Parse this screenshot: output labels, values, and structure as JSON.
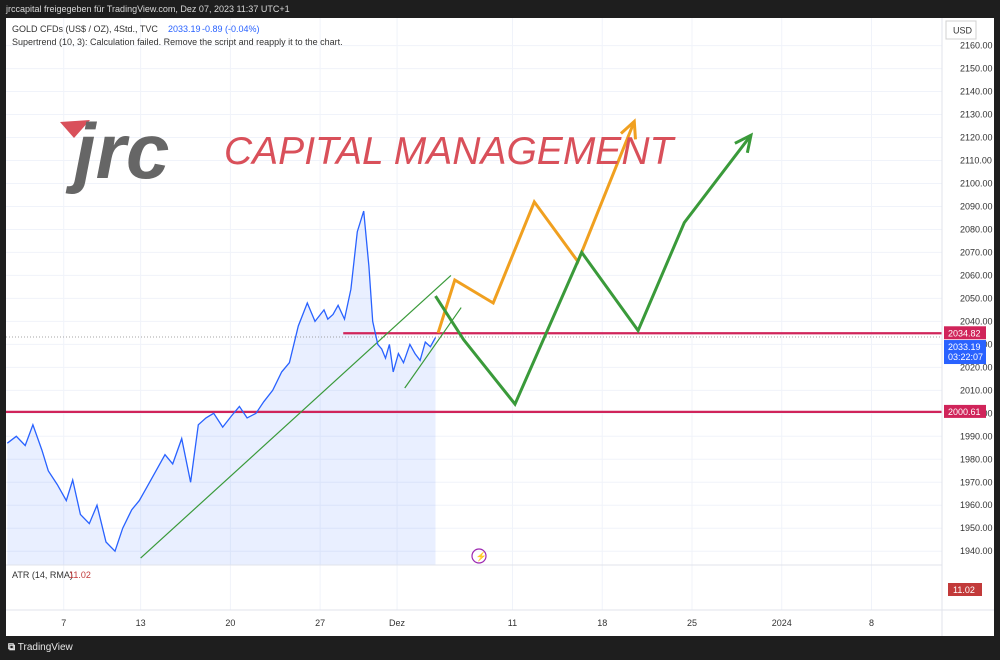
{
  "header": {
    "publisher": "jrccapital freigegeben für TradingView.com, Dez 07, 2023 11:37 UTC+1"
  },
  "legend": {
    "symbol": "GOLD CFDs (US$ / OZ), 4Std., TVC",
    "last": "2033.19",
    "change": "-0.89 (-0.04%)",
    "indicator": "Supertrend (10, 3): Calculation failed. Remove the script and reapply it to the chart.",
    "atr_label": "ATR (14, RMA)",
    "atr_value": "11.02"
  },
  "logo": {
    "mark": "jrc",
    "text": "CAPITAL MANAGEMENT"
  },
  "footer": {
    "brand": "TradingView"
  },
  "colors": {
    "price_line": "#2962ff",
    "trend_green": "#3a9a3a",
    "orange": "#f0a020",
    "resistance": "#d0245a",
    "logo_gray": "#666666",
    "logo_red": "#d9505a"
  },
  "chart_data": {
    "type": "line",
    "currency": "USD",
    "y_ticks": [
      1940,
      1950,
      1960,
      1970,
      1980,
      1990,
      2000,
      2010,
      2020,
      2030,
      2040,
      2050,
      2060,
      2070,
      2080,
      2090,
      2100,
      2110,
      2120,
      2130,
      2140,
      2150,
      2160
    ],
    "ylim": [
      1934,
      2172
    ],
    "x_ticks": [
      "7",
      "13",
      "20",
      "27",
      "Dez",
      "11",
      "18",
      "25",
      "2024",
      "8"
    ],
    "x_tick_pos": [
      7,
      13,
      20,
      27,
      33,
      42,
      49,
      56,
      63,
      70
    ],
    "xlim": [
      2.5,
      75.5
    ],
    "price_series": {
      "name": "GOLD",
      "x": [
        2.6,
        3.3,
        4.0,
        4.6,
        5.3,
        5.8,
        6.5,
        7.2,
        7.7,
        8.3,
        9.0,
        9.6,
        10.3,
        11.0,
        11.6,
        12.3,
        12.9,
        13.5,
        14.2,
        14.9,
        15.5,
        16.2,
        16.9,
        17.5,
        18.1,
        18.7,
        19.4,
        20.1,
        20.7,
        21.3,
        22.0,
        22.6,
        23.3,
        24.0,
        24.6,
        25.3,
        26.0,
        26.6,
        27.3,
        27.6,
        28.0,
        28.4,
        28.9,
        29.4,
        29.9,
        30.4,
        30.8,
        31.1,
        31.5,
        31.8,
        32.1,
        32.4,
        32.7,
        33.1,
        33.5,
        34.0,
        34.4,
        34.8,
        35.2,
        35.6,
        36.0
      ],
      "y": [
        1987,
        1990,
        1986,
        1995,
        1984,
        1975,
        1969,
        1962,
        1971,
        1956,
        1952,
        1960,
        1944,
        1940,
        1950,
        1958,
        1962,
        1968,
        1975,
        1982,
        1978,
        1989,
        1970,
        1995,
        1998,
        2000,
        1994,
        1999,
        2003,
        1998,
        2000,
        2005,
        2010,
        2018,
        2022,
        2038,
        2048,
        2040,
        2045,
        2041,
        2043,
        2047,
        2041,
        2054,
        2079,
        2088,
        2064,
        2040,
        2030,
        2028,
        2024,
        2030,
        2018,
        2026,
        2022,
        2030,
        2026,
        2023,
        2031,
        2029,
        2033
      ]
    },
    "resistance_levels": [
      {
        "price": 2034.82,
        "label": "2034.82"
      },
      {
        "price": 2000.61,
        "label": "2000.61"
      }
    ],
    "price_label": "2033.19",
    "countdown": "03:22:07",
    "atr_axis_label": "11.02",
    "trendlines": [
      {
        "x": [
          13.0,
          37.2
        ],
        "y": [
          1937,
          2060
        ]
      },
      {
        "x": [
          33.6,
          38.0
        ],
        "y": [
          2011,
          2046
        ]
      }
    ],
    "projections": [
      {
        "name": "orange",
        "x": [
          36.2,
          37.5,
          40.5,
          43.7,
          47.1,
          51.5
        ],
        "y": [
          2035,
          2058,
          2048,
          2092,
          2066,
          2127
        ]
      },
      {
        "name": "green",
        "x": [
          36.0,
          38.2,
          42.2,
          47.4,
          51.8,
          55.4,
          60.6
        ],
        "y": [
          2051,
          2032,
          2004,
          2070,
          2036,
          2083,
          2121
        ]
      }
    ]
  }
}
